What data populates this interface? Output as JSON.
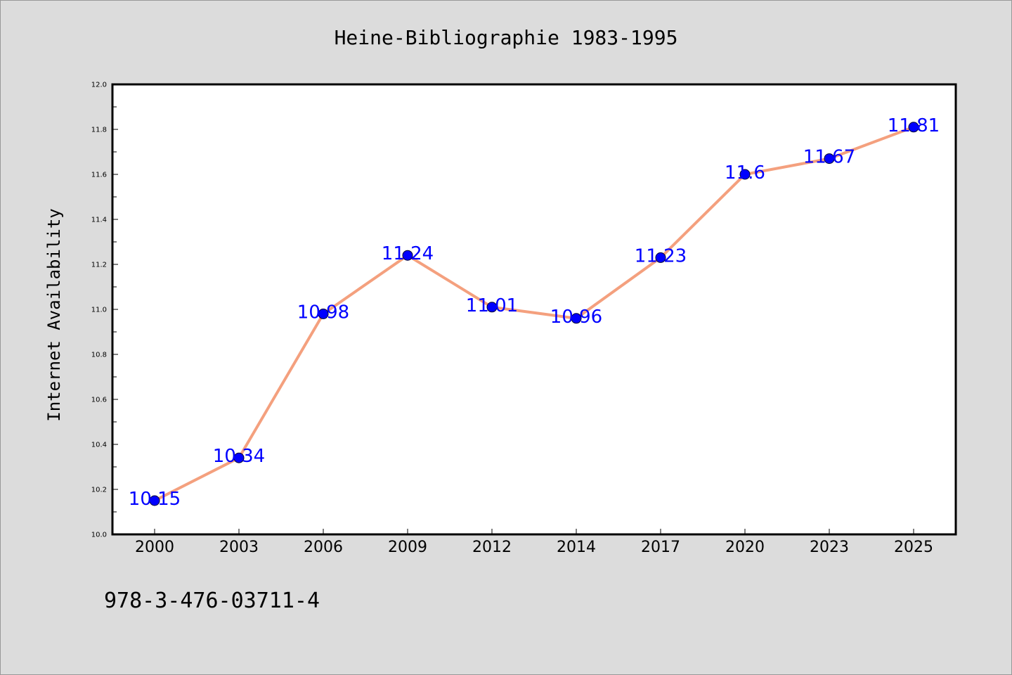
{
  "chart_data": {
    "type": "line",
    "title": "Heine-Bibliographie 1983-1995",
    "xlabel": "",
    "ylabel": "Internet Availability",
    "categories": [
      "2000",
      "2003",
      "2006",
      "2009",
      "2012",
      "2014",
      "2017",
      "2020",
      "2023",
      "2025"
    ],
    "series": [
      {
        "values": [
          10.15,
          10.34,
          10.98,
          11.24,
          11.01,
          10.96,
          11.23,
          11.6,
          11.67,
          11.81
        ],
        "labels": [
          "10.15",
          "10.34",
          "10.98",
          "11.24",
          "11.01",
          "10.96",
          "11.23",
          "11.6",
          "11.67",
          "11.81"
        ]
      }
    ],
    "ylim": [
      10.0,
      12.0
    ],
    "yticks": [
      "10.0",
      "10.2",
      "10.4",
      "10.6",
      "10.8",
      "11.0",
      "11.2",
      "11.4",
      "11.6",
      "11.8",
      "12.0"
    ],
    "grid": false,
    "colors": {
      "line": "#f4a07e",
      "marker": "#0000ff",
      "label": "#0000ff",
      "background": "#dcdcdc",
      "plot_background": "#ffffff"
    }
  },
  "footer_text": "978-3-476-03711-4"
}
